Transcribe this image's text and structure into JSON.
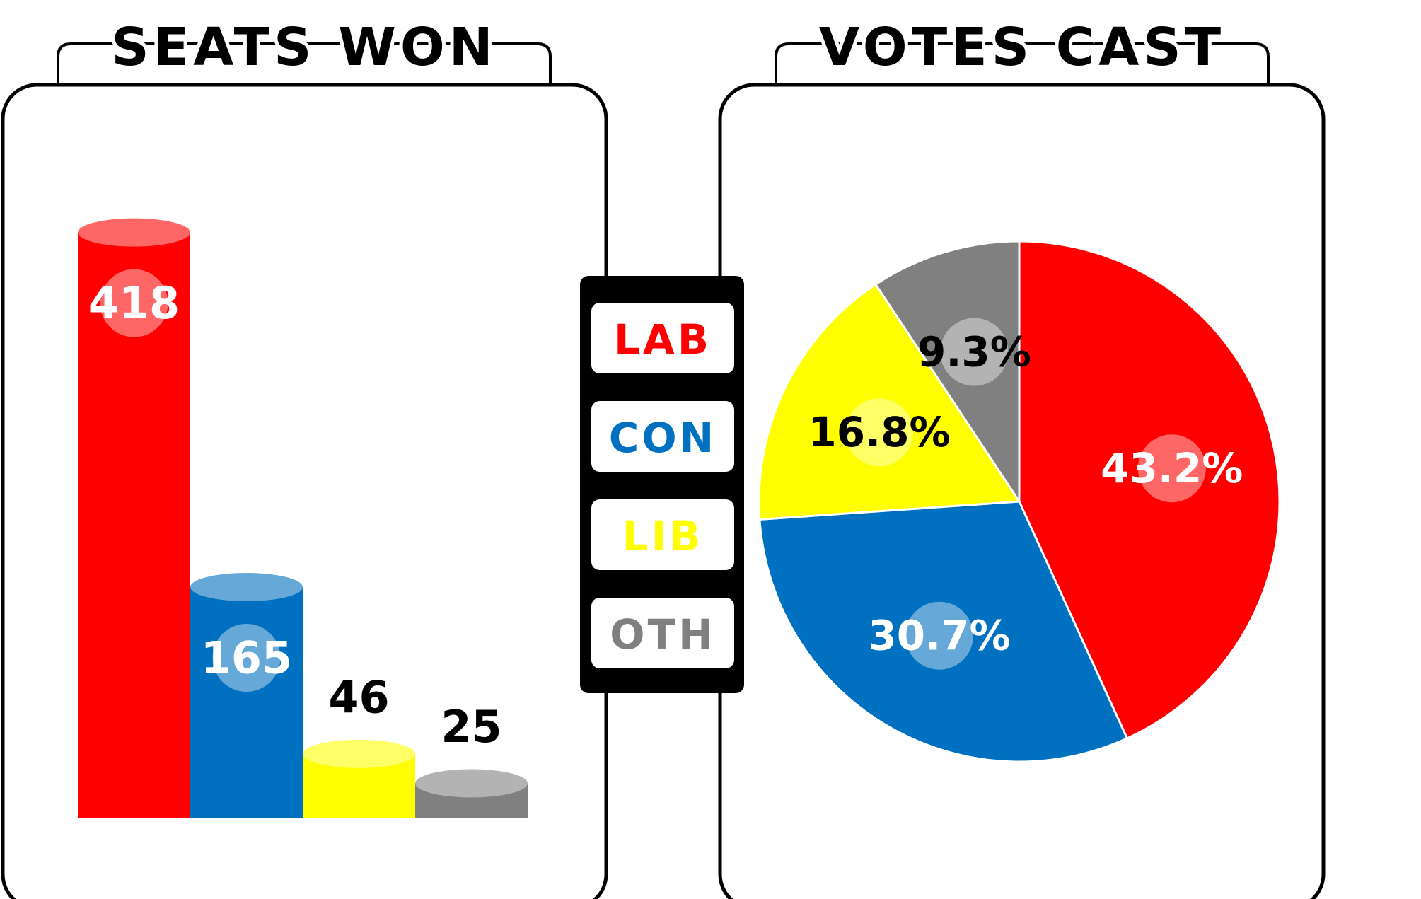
{
  "colors": {
    "LAB": "#ff0000",
    "CON": "#0070c0",
    "LIB": "#ffff00",
    "OTH": "#808080"
  },
  "legend": [
    {
      "label": "LAB",
      "color": "#ff0000"
    },
    {
      "label": "CON",
      "color": "#0070c0"
    },
    {
      "label": "LIB",
      "color": "#ffff00"
    },
    {
      "label": "OTH",
      "color": "#808080"
    }
  ],
  "chart_data": [
    {
      "type": "bar",
      "title": "SEATS WON",
      "categories": [
        "LAB",
        "CON",
        "LIB",
        "OTH"
      ],
      "values": [
        418,
        165,
        46,
        25
      ],
      "value_labels": [
        "418",
        "165",
        "46",
        "25"
      ],
      "ylim": [
        0,
        440
      ],
      "grid": false,
      "legend": "shared, between charts"
    },
    {
      "type": "pie",
      "title": "VOTES CAST",
      "categories": [
        "LAB",
        "CON",
        "LIB",
        "OTH"
      ],
      "values": [
        43.2,
        30.7,
        16.8,
        9.3
      ],
      "value_labels": [
        "43.2%",
        "30.7%",
        "16.8%",
        "9.3%"
      ],
      "legend": "shared, between charts"
    }
  ]
}
